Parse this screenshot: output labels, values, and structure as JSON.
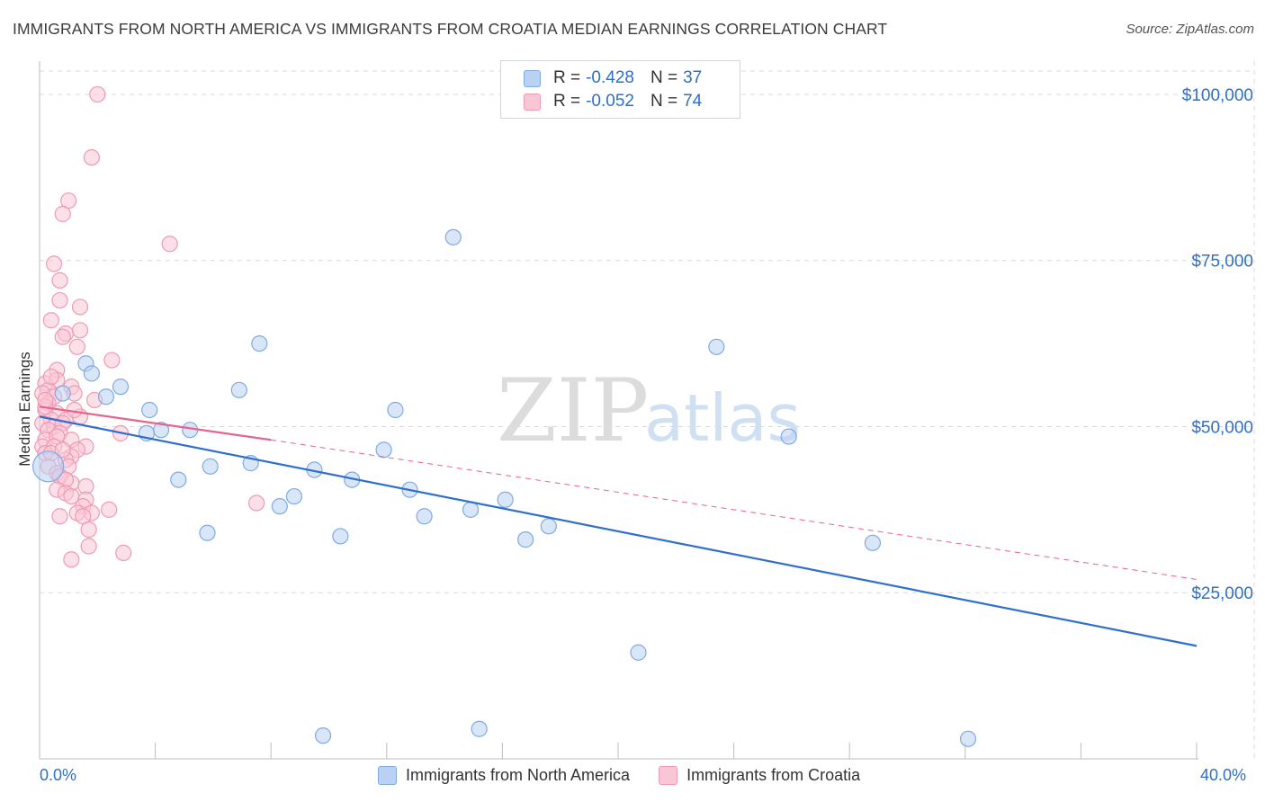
{
  "header": {
    "title": "IMMIGRANTS FROM NORTH AMERICA VS IMMIGRANTS FROM CROATIA MEDIAN EARNINGS CORRELATION CHART",
    "source": "Source: ZipAtlas.com"
  },
  "watermark": {
    "zip": "ZIP",
    "atlas": "atlas"
  },
  "legend": {
    "rows": [
      {
        "r_label": "R =",
        "r_value": "-0.428",
        "n_label": "N =",
        "n_value": "37"
      },
      {
        "r_label": "R =",
        "r_value": "-0.052",
        "n_label": "N =",
        "n_value": "74"
      }
    ]
  },
  "colors": {
    "blue_fill": "#b9d2f3",
    "blue_stroke": "#7faae3",
    "blue_line": "#2f6fd0",
    "pink_fill": "#f9c6d5",
    "pink_stroke": "#ef9ab4",
    "pink_line": "#e8638d",
    "axis_text": "#2f6fc6",
    "grid": "#d9d9d9"
  },
  "chart_data": {
    "type": "scatter",
    "title": "IMMIGRANTS FROM NORTH AMERICA VS IMMIGRANTS FROM CROATIA MEDIAN EARNINGS CORRELATION CHART",
    "xlabel": "",
    "ylabel": "Median Earnings",
    "xlim": [
      0,
      40
    ],
    "ylim": [
      0,
      105000
    ],
    "x_tick_labels": [
      "0.0%",
      "40.0%"
    ],
    "y_ticks": [
      25000,
      50000,
      75000,
      100000
    ],
    "y_tick_labels": [
      "$25,000",
      "$50,000",
      "$75,000",
      "$100,000"
    ],
    "series": [
      {
        "name": "Immigrants from North America",
        "color": "blue",
        "points": [
          [
            0.3,
            44000
          ],
          [
            1.6,
            59500
          ],
          [
            1.8,
            58000
          ],
          [
            2.3,
            54500
          ],
          [
            2.8,
            56000
          ],
          [
            3.7,
            49000
          ],
          [
            3.8,
            52500
          ],
          [
            4.2,
            49500
          ],
          [
            4.8,
            42000
          ],
          [
            5.2,
            49500
          ],
          [
            5.9,
            44000
          ],
          [
            5.8,
            34000
          ],
          [
            6.9,
            55500
          ],
          [
            7.3,
            44500
          ],
          [
            7.6,
            62500
          ],
          [
            8.3,
            38000
          ],
          [
            8.8,
            39500
          ],
          [
            9.5,
            43500
          ],
          [
            9.8,
            3500
          ],
          [
            10.4,
            33500
          ],
          [
            10.8,
            42000
          ],
          [
            11.9,
            46500
          ],
          [
            12.3,
            52500
          ],
          [
            12.8,
            40500
          ],
          [
            13.3,
            36500
          ],
          [
            14.3,
            78500
          ],
          [
            14.9,
            37500
          ],
          [
            15.2,
            4500
          ],
          [
            16.1,
            39000
          ],
          [
            16.8,
            33000
          ],
          [
            17.6,
            35000
          ],
          [
            20.7,
            16000
          ],
          [
            23.4,
            62000
          ],
          [
            25.9,
            48500
          ],
          [
            28.8,
            32500
          ],
          [
            32.1,
            3000
          ],
          [
            0.8,
            55000
          ]
        ]
      },
      {
        "name": "Immigrants from Croatia",
        "color": "pink",
        "points": [
          [
            2.0,
            100000
          ],
          [
            1.8,
            90500
          ],
          [
            1.0,
            84000
          ],
          [
            0.8,
            82000
          ],
          [
            4.5,
            77500
          ],
          [
            0.5,
            74500
          ],
          [
            0.7,
            72000
          ],
          [
            0.7,
            69000
          ],
          [
            1.4,
            68000
          ],
          [
            0.4,
            66000
          ],
          [
            0.9,
            64000
          ],
          [
            1.4,
            64500
          ],
          [
            0.8,
            63500
          ],
          [
            1.3,
            62000
          ],
          [
            2.5,
            60000
          ],
          [
            0.6,
            58500
          ],
          [
            0.2,
            56500
          ],
          [
            0.6,
            57000
          ],
          [
            1.1,
            56000
          ],
          [
            0.3,
            55500
          ],
          [
            0.1,
            55000
          ],
          [
            0.5,
            54500
          ],
          [
            1.2,
            55000
          ],
          [
            0.3,
            53500
          ],
          [
            0.2,
            52500
          ],
          [
            1.9,
            54000
          ],
          [
            0.6,
            52000
          ],
          [
            0.4,
            51000
          ],
          [
            0.9,
            51000
          ],
          [
            1.4,
            51500
          ],
          [
            0.1,
            50500
          ],
          [
            0.5,
            50000
          ],
          [
            0.8,
            50500
          ],
          [
            0.3,
            49500
          ],
          [
            0.7,
            49000
          ],
          [
            2.8,
            49000
          ],
          [
            0.2,
            48000
          ],
          [
            0.6,
            48500
          ],
          [
            1.1,
            48000
          ],
          [
            0.1,
            47000
          ],
          [
            0.5,
            47000
          ],
          [
            1.6,
            47000
          ],
          [
            1.3,
            46500
          ],
          [
            0.2,
            46000
          ],
          [
            0.4,
            46000
          ],
          [
            1.1,
            45500
          ],
          [
            0.9,
            45000
          ],
          [
            0.3,
            44000
          ],
          [
            1.0,
            44000
          ],
          [
            0.6,
            43000
          ],
          [
            0.7,
            42500
          ],
          [
            1.1,
            41500
          ],
          [
            0.9,
            42000
          ],
          [
            1.6,
            41000
          ],
          [
            0.6,
            40500
          ],
          [
            0.9,
            40000
          ],
          [
            1.1,
            39500
          ],
          [
            1.6,
            39000
          ],
          [
            1.5,
            38000
          ],
          [
            7.5,
            38500
          ],
          [
            1.8,
            37000
          ],
          [
            1.3,
            37000
          ],
          [
            2.4,
            37500
          ],
          [
            1.5,
            36500
          ],
          [
            0.7,
            36500
          ],
          [
            1.7,
            34500
          ],
          [
            1.7,
            32000
          ],
          [
            2.9,
            31000
          ],
          [
            1.1,
            30000
          ],
          [
            0.2,
            53000
          ],
          [
            0.4,
            57500
          ],
          [
            0.2,
            54000
          ],
          [
            0.8,
            46500
          ],
          [
            1.2,
            52500
          ]
        ]
      }
    ],
    "trend_lines": [
      {
        "series": "Immigrants from North America",
        "x_start": 0,
        "y_start": 51500,
        "x_end": 40,
        "y_end": 17000,
        "style": "solid"
      },
      {
        "series": "Immigrants from Croatia",
        "x_start": 0,
        "y_start": 53000,
        "x_end": 8,
        "y_end": 48000,
        "style": "solid"
      },
      {
        "series": "Immigrants from Croatia",
        "x_start": 8,
        "y_start": 48000,
        "x_end": 40,
        "y_end": 27000,
        "style": "dashed"
      }
    ],
    "legend_position": "top-center",
    "bottom_legend": [
      "Immigrants from North America",
      "Immigrants from Croatia"
    ]
  }
}
